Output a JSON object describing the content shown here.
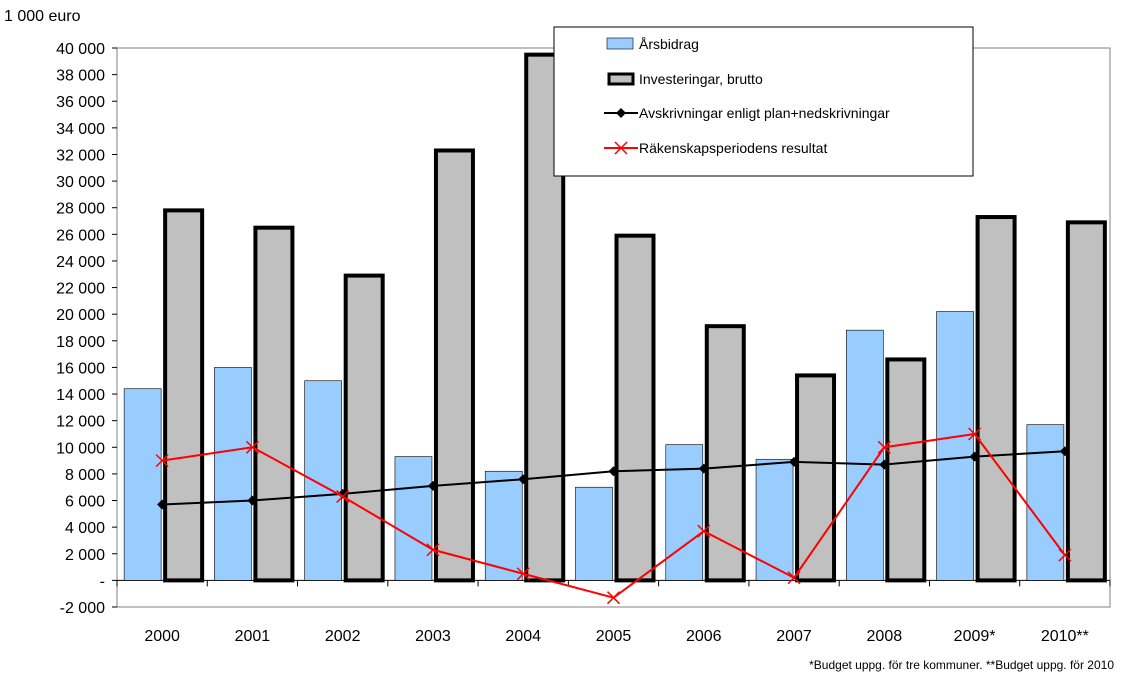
{
  "chart_data": {
    "type": "bar",
    "ylabel": "1 000 euro",
    "footnote": "*Budget uppg. för tre kommuner. **Budget uppg. för 2010",
    "categories": [
      "2000",
      "2001",
      "2002",
      "2003",
      "2004",
      "2005",
      "2006",
      "2007",
      "2008",
      "2009*",
      "2010**"
    ],
    "ylim": [
      -2000,
      40000
    ],
    "ytick_step": 2000,
    "ytick_labels": [
      "-2 000",
      "-",
      "2 000",
      "4 000",
      "6 000",
      "8 000",
      "10 000",
      "12 000",
      "14 000",
      "16 000",
      "18 000",
      "20 000",
      "22 000",
      "24 000",
      "26 000",
      "28 000",
      "30 000",
      "32 000",
      "34 000",
      "36 000",
      "38 000",
      "40 000"
    ],
    "grid": false,
    "legend_position": "top-right",
    "series": [
      {
        "name": "Årsbidrag",
        "kind": "bar",
        "color": "#99ccff",
        "values": [
          14400,
          16000,
          15000,
          9300,
          8200,
          7000,
          10200,
          9100,
          18800,
          20200,
          11700
        ]
      },
      {
        "name": "Investeringar, brutto",
        "kind": "bar",
        "color": "#c0c0c0",
        "values": [
          27800,
          26500,
          22900,
          32300,
          39500,
          25900,
          19100,
          15400,
          16600,
          27300,
          26900
        ]
      },
      {
        "name": "Avskrivningar enligt plan+nedskrivningar",
        "kind": "line",
        "color": "#000000",
        "marker": "diamond",
        "values": [
          5700,
          6000,
          6500,
          7100,
          7600,
          8200,
          8400,
          8900,
          8700,
          9300,
          9700
        ]
      },
      {
        "name": "Räkenskapsperiodens resultat",
        "kind": "line",
        "color": "#ff0000",
        "marker": "x",
        "values": [
          9000,
          10000,
          6300,
          2300,
          500,
          -1300,
          3700,
          200,
          10000,
          11000,
          1900
        ]
      }
    ]
  }
}
